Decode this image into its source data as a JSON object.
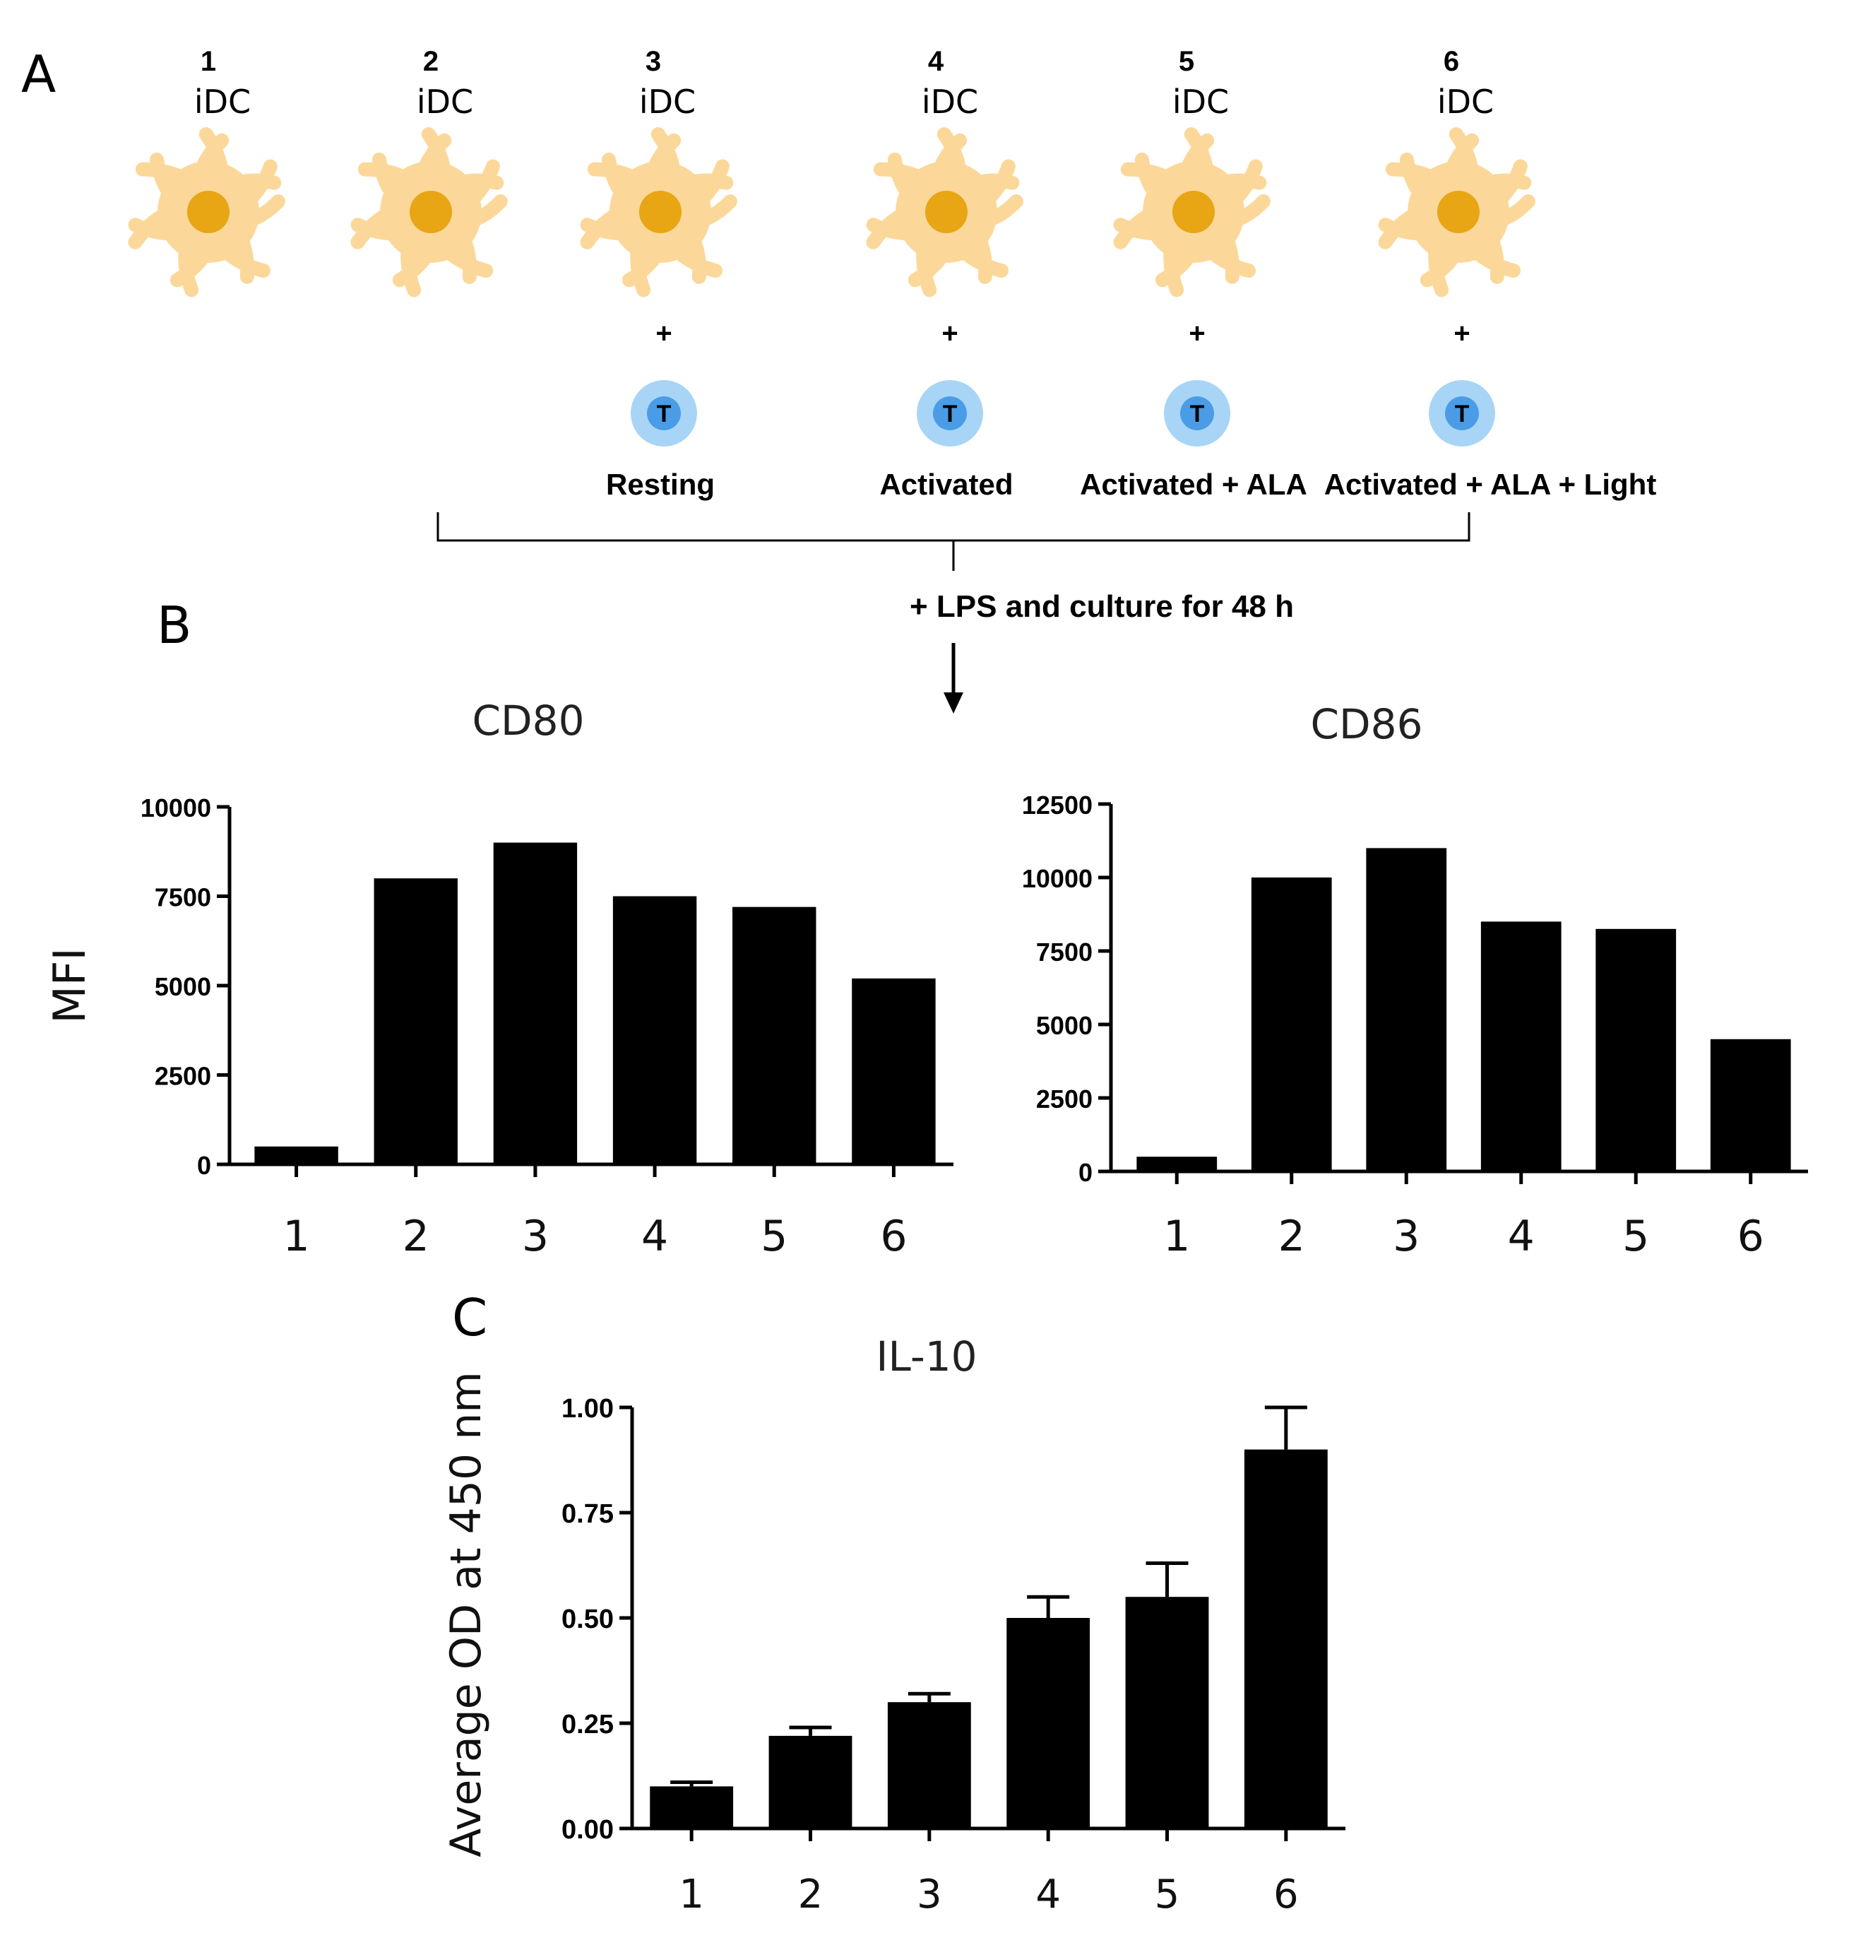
{
  "panels": {
    "a": "A",
    "b": "B",
    "c": "C"
  },
  "groups": [
    {
      "num": "1",
      "cell": "iDC",
      "plus": "",
      "tcell": "",
      "condition": ""
    },
    {
      "num": "2",
      "cell": "iDC",
      "plus": "",
      "tcell": "",
      "condition": ""
    },
    {
      "num": "3",
      "cell": "iDC",
      "plus": "+",
      "tcell": "T",
      "condition": "Resting"
    },
    {
      "num": "4",
      "cell": "iDC",
      "plus": "+",
      "tcell": "T",
      "condition": "Activated"
    },
    {
      "num": "5",
      "cell": "iDC",
      "plus": "+",
      "tcell": "T",
      "condition": "Activated + ALA"
    },
    {
      "num": "6",
      "cell": "iDC",
      "plus": "+",
      "tcell": "T",
      "condition": "Activated + ALA + Light"
    }
  ],
  "brace_label": "+ LPS and culture for 48 h",
  "colors": {
    "idc_body": "#fbd89a",
    "idc_nucleus": "#e8a514",
    "tcell_outer": "#a8d5f5",
    "tcell_inner": "#4a9ce6",
    "bar": "#000000"
  },
  "chart_data": [
    {
      "type": "bar",
      "title": "CD80",
      "xlabel": "",
      "ylabel": "MFI",
      "categories": [
        "1",
        "2",
        "3",
        "4",
        "5",
        "6"
      ],
      "values": [
        500,
        8000,
        9000,
        7500,
        7200,
        5200
      ],
      "ylim": [
        0,
        10000
      ],
      "yticks": [
        0,
        2500,
        5000,
        7500,
        10000
      ],
      "ytick_labels": [
        "0",
        "2500",
        "5000",
        "7500",
        "10000"
      ],
      "grid": false
    },
    {
      "type": "bar",
      "title": "CD86",
      "xlabel": "",
      "ylabel": "",
      "categories": [
        "1",
        "2",
        "3",
        "4",
        "5",
        "6"
      ],
      "values": [
        500,
        10000,
        11000,
        8500,
        8250,
        4500
      ],
      "ylim": [
        0,
        12500
      ],
      "yticks": [
        0,
        2500,
        5000,
        7500,
        10000,
        12500
      ],
      "ytick_labels": [
        "0",
        "2500",
        "5000",
        "7500",
        "10000",
        "12500"
      ],
      "grid": false
    },
    {
      "type": "bar",
      "title": "IL-10",
      "xlabel": "",
      "ylabel": "Average OD at 450 nm",
      "categories": [
        "1",
        "2",
        "3",
        "4",
        "5",
        "6"
      ],
      "values": [
        0.1,
        0.22,
        0.3,
        0.5,
        0.55,
        0.9
      ],
      "errors": [
        0.01,
        0.02,
        0.02,
        0.05,
        0.08,
        0.1
      ],
      "ylim": [
        0,
        1
      ],
      "yticks": [
        0,
        0.25,
        0.5,
        0.75,
        1
      ],
      "ytick_labels": [
        "0.00",
        "0.25",
        "0.50",
        "0.75",
        "1.00"
      ],
      "grid": false
    }
  ]
}
